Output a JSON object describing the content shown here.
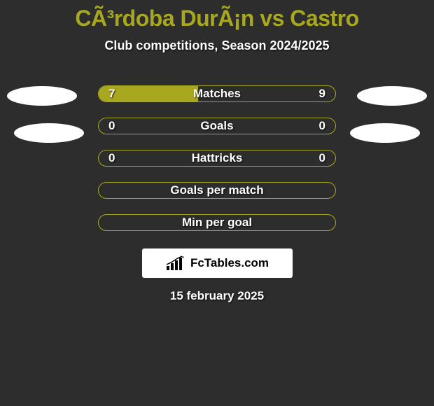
{
  "title": "CÃ³rdoba DurÃ¡n vs Castro",
  "subtitle": "Club competitions, Season 2024/2025",
  "colors": {
    "background": "#2d2d2d",
    "accent": "#a8a820",
    "text": "#ffffff",
    "ellipse": "#ffffff",
    "logo_bg": "#ffffff"
  },
  "stats": [
    {
      "label": "Matches",
      "left_value": "7",
      "right_value": "9",
      "left_fill_pct": 42,
      "right_fill_pct": 0
    },
    {
      "label": "Goals",
      "left_value": "0",
      "right_value": "0",
      "left_fill_pct": 0,
      "right_fill_pct": 0
    },
    {
      "label": "Hattricks",
      "left_value": "0",
      "right_value": "0",
      "left_fill_pct": 0,
      "right_fill_pct": 0
    },
    {
      "label": "Goals per match",
      "left_value": "",
      "right_value": "",
      "left_fill_pct": 0,
      "right_fill_pct": 0
    },
    {
      "label": "Min per goal",
      "left_value": "",
      "right_value": "",
      "left_fill_pct": 0,
      "right_fill_pct": 0
    }
  ],
  "logo_text": "FcTables.com",
  "date": "15 february 2025"
}
